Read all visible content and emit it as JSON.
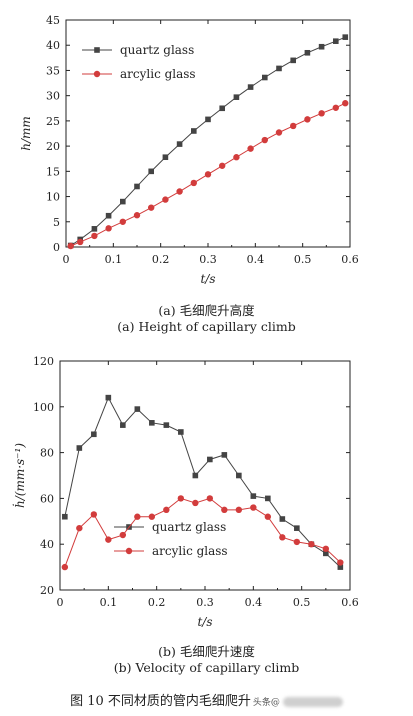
{
  "chart_data": [
    {
      "type": "line",
      "title": "",
      "xlabel": "t/s",
      "ylabel": "h/mm",
      "xlim": [
        0,
        0.6
      ],
      "ylim": [
        0,
        45
      ],
      "x_ticks": [
        "0",
        "0.1",
        "0.2",
        "0.3",
        "0.4",
        "0.5",
        "0.6"
      ],
      "y_ticks": [
        "0",
        "5",
        "10",
        "15",
        "20",
        "25",
        "30",
        "35",
        "40",
        "45"
      ],
      "legend_position": "top-left",
      "series": [
        {
          "name": "quartz glass",
          "color": "#444444",
          "marker": "square",
          "x": [
            0.01,
            0.03,
            0.06,
            0.09,
            0.12,
            0.15,
            0.18,
            0.21,
            0.24,
            0.27,
            0.3,
            0.33,
            0.36,
            0.39,
            0.42,
            0.45,
            0.48,
            0.51,
            0.54,
            0.57,
            0.59
          ],
          "y": [
            0.3,
            1.5,
            3.6,
            6.2,
            9.0,
            12.0,
            15.0,
            17.8,
            20.4,
            23.0,
            25.3,
            27.5,
            29.7,
            31.7,
            33.6,
            35.4,
            37.0,
            38.5,
            39.7,
            40.8,
            41.6
          ]
        },
        {
          "name": "arcylic glass",
          "color": "#d23c3c",
          "marker": "circle",
          "x": [
            0.01,
            0.03,
            0.06,
            0.09,
            0.12,
            0.15,
            0.18,
            0.21,
            0.24,
            0.27,
            0.3,
            0.33,
            0.36,
            0.39,
            0.42,
            0.45,
            0.48,
            0.51,
            0.54,
            0.57,
            0.59
          ],
          "y": [
            0.2,
            1.0,
            2.2,
            3.7,
            5.0,
            6.3,
            7.8,
            9.4,
            11.0,
            12.7,
            14.4,
            16.1,
            17.8,
            19.5,
            21.2,
            22.7,
            24.0,
            25.3,
            26.5,
            27.6,
            28.5
          ]
        }
      ]
    },
    {
      "type": "line",
      "title": "",
      "xlabel": "t/s",
      "ylabel": "ḣ/(mm·s⁻¹)",
      "xlim": [
        0,
        0.6
      ],
      "ylim": [
        20,
        120
      ],
      "x_ticks": [
        "0",
        "0.1",
        "0.2",
        "0.3",
        "0.4",
        "0.5",
        "0.6"
      ],
      "y_ticks": [
        "20",
        "40",
        "60",
        "80",
        "100",
        "120"
      ],
      "legend_position": "bottom-center",
      "series": [
        {
          "name": "quartz glass",
          "color": "#444444",
          "marker": "square",
          "x": [
            0.01,
            0.04,
            0.07,
            0.1,
            0.13,
            0.16,
            0.19,
            0.22,
            0.25,
            0.28,
            0.31,
            0.34,
            0.37,
            0.4,
            0.43,
            0.46,
            0.49,
            0.52,
            0.55,
            0.58
          ],
          "y": [
            52,
            82,
            88,
            104,
            92,
            99,
            93,
            92,
            89,
            70,
            77,
            79,
            70,
            61,
            60,
            51,
            47,
            40,
            36,
            30
          ]
        },
        {
          "name": "arcylic glass",
          "color": "#d23c3c",
          "marker": "circle",
          "x": [
            0.01,
            0.04,
            0.07,
            0.1,
            0.13,
            0.16,
            0.19,
            0.22,
            0.25,
            0.28,
            0.31,
            0.34,
            0.37,
            0.4,
            0.43,
            0.46,
            0.49,
            0.52,
            0.55,
            0.58
          ],
          "y": [
            30,
            47,
            53,
            42,
            44,
            52,
            52,
            55,
            60,
            58,
            60,
            55,
            55,
            56,
            52,
            43,
            41,
            40,
            38,
            32
          ]
        }
      ]
    }
  ],
  "captions": {
    "a_cn": "(a) 毛细爬升高度",
    "a_en": "(a) Height of capillary climb",
    "b_cn": "(b) 毛细爬升速度",
    "b_en": "(b) Velocity of capillary climb",
    "figure": "图 10   不同材质的管内毛细爬升",
    "watermark": "头条@"
  }
}
